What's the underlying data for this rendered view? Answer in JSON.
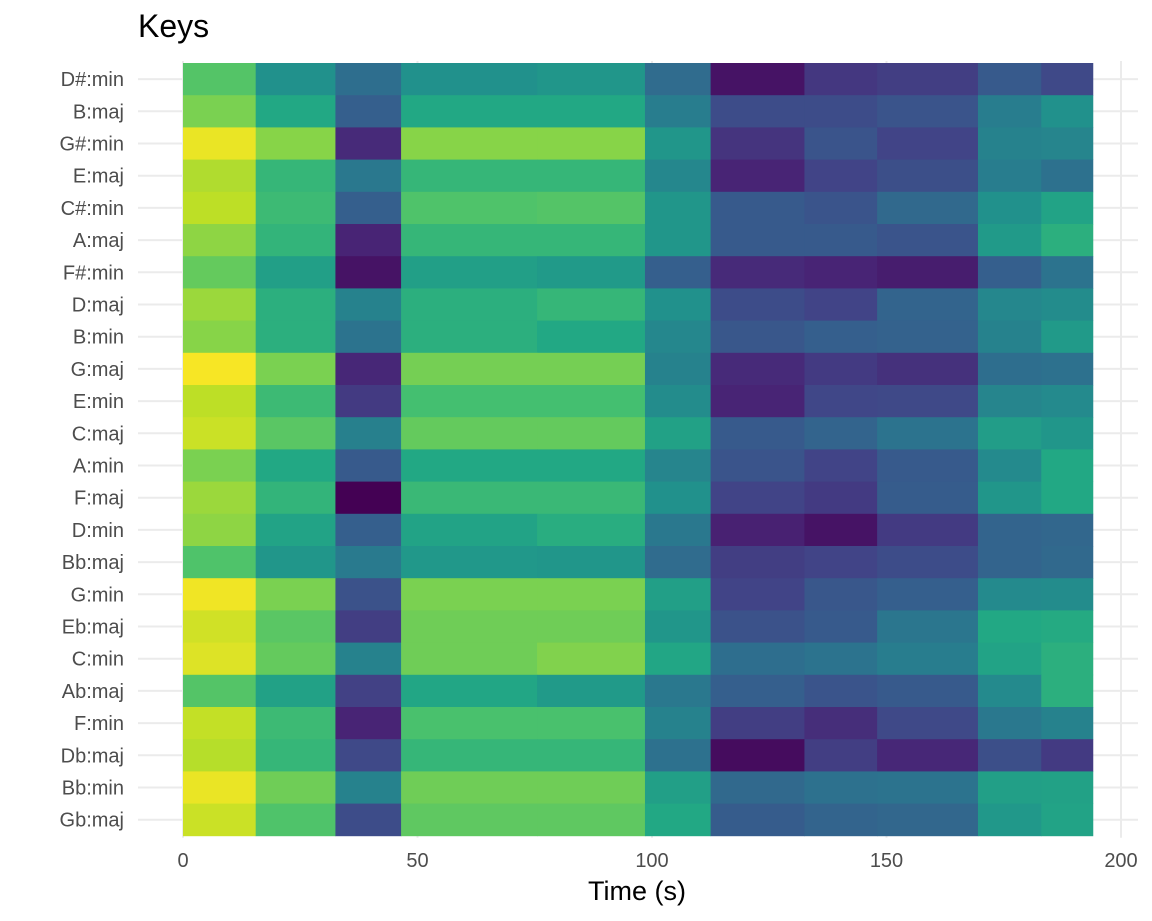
{
  "chart_data": {
    "type": "heatmap",
    "title": "Keys",
    "xlabel": "Time (s)",
    "ylabel": "",
    "xlim": [
      0,
      200
    ],
    "xticks": [
      0,
      50,
      100,
      150,
      200
    ],
    "grid": true,
    "legend": "none",
    "colormap": "viridis",
    "value_range": [
      0,
      1
    ],
    "time_bins": [
      [
        0,
        15.5
      ],
      [
        15.5,
        32.5
      ],
      [
        32.5,
        46.5
      ],
      [
        46.5,
        75.5
      ],
      [
        75.5,
        98.5
      ],
      [
        98.5,
        112.5
      ],
      [
        112.5,
        132.5
      ],
      [
        132.5,
        148
      ],
      [
        148,
        169.5
      ],
      [
        169.5,
        183
      ],
      [
        183,
        194
      ]
    ],
    "keys": [
      "D#:min",
      "B:maj",
      "G#:min",
      "E:maj",
      "C#:min",
      "A:maj",
      "F#:min",
      "D:maj",
      "B:min",
      "G:maj",
      "E:min",
      "C:maj",
      "A:min",
      "F:maj",
      "D:min",
      "Bb:maj",
      "G:min",
      "Eb:maj",
      "C:min",
      "Ab:maj",
      "F:min",
      "Db:maj",
      "Bb:min",
      "Gb:maj"
    ],
    "values": [
      [
        0.73,
        0.5,
        0.36,
        0.5,
        0.52,
        0.35,
        0.05,
        0.16,
        0.18,
        0.28,
        0.22
      ],
      [
        0.8,
        0.6,
        0.3,
        0.6,
        0.6,
        0.42,
        0.23,
        0.23,
        0.26,
        0.42,
        0.5
      ],
      [
        0.97,
        0.82,
        0.12,
        0.82,
        0.82,
        0.52,
        0.15,
        0.26,
        0.2,
        0.44,
        0.45
      ],
      [
        0.88,
        0.66,
        0.4,
        0.66,
        0.66,
        0.46,
        0.1,
        0.2,
        0.24,
        0.42,
        0.37
      ],
      [
        0.9,
        0.68,
        0.3,
        0.72,
        0.73,
        0.52,
        0.28,
        0.26,
        0.34,
        0.5,
        0.58
      ],
      [
        0.83,
        0.65,
        0.1,
        0.66,
        0.66,
        0.52,
        0.28,
        0.28,
        0.26,
        0.54,
        0.63
      ],
      [
        0.76,
        0.56,
        0.05,
        0.56,
        0.54,
        0.3,
        0.12,
        0.1,
        0.08,
        0.3,
        0.38
      ],
      [
        0.85,
        0.63,
        0.44,
        0.63,
        0.66,
        0.5,
        0.23,
        0.2,
        0.32,
        0.46,
        0.48
      ],
      [
        0.82,
        0.63,
        0.38,
        0.63,
        0.6,
        0.46,
        0.27,
        0.3,
        0.31,
        0.44,
        0.54
      ],
      [
        0.99,
        0.8,
        0.11,
        0.79,
        0.79,
        0.44,
        0.12,
        0.17,
        0.14,
        0.36,
        0.37
      ],
      [
        0.9,
        0.68,
        0.17,
        0.7,
        0.7,
        0.48,
        0.1,
        0.21,
        0.22,
        0.45,
        0.47
      ],
      [
        0.92,
        0.74,
        0.43,
        0.76,
        0.76,
        0.57,
        0.28,
        0.32,
        0.38,
        0.55,
        0.52
      ],
      [
        0.8,
        0.6,
        0.28,
        0.6,
        0.6,
        0.45,
        0.26,
        0.2,
        0.28,
        0.47,
        0.6
      ],
      [
        0.85,
        0.65,
        0.0,
        0.67,
        0.67,
        0.5,
        0.2,
        0.17,
        0.29,
        0.52,
        0.6
      ],
      [
        0.83,
        0.58,
        0.3,
        0.58,
        0.62,
        0.4,
        0.09,
        0.05,
        0.17,
        0.32,
        0.33
      ],
      [
        0.72,
        0.52,
        0.41,
        0.53,
        0.52,
        0.35,
        0.18,
        0.2,
        0.23,
        0.32,
        0.34
      ],
      [
        0.98,
        0.8,
        0.25,
        0.8,
        0.8,
        0.56,
        0.2,
        0.27,
        0.3,
        0.47,
        0.48
      ],
      [
        0.93,
        0.74,
        0.18,
        0.78,
        0.78,
        0.52,
        0.25,
        0.28,
        0.39,
        0.6,
        0.61
      ],
      [
        0.95,
        0.76,
        0.44,
        0.78,
        0.81,
        0.59,
        0.36,
        0.38,
        0.42,
        0.58,
        0.63
      ],
      [
        0.73,
        0.57,
        0.19,
        0.59,
        0.54,
        0.4,
        0.3,
        0.26,
        0.28,
        0.47,
        0.63
      ],
      [
        0.91,
        0.68,
        0.1,
        0.71,
        0.71,
        0.44,
        0.18,
        0.13,
        0.22,
        0.4,
        0.44
      ],
      [
        0.89,
        0.66,
        0.22,
        0.66,
        0.66,
        0.37,
        0.03,
        0.18,
        0.11,
        0.24,
        0.17
      ],
      [
        0.97,
        0.78,
        0.44,
        0.78,
        0.78,
        0.56,
        0.34,
        0.37,
        0.38,
        0.56,
        0.57
      ],
      [
        0.92,
        0.72,
        0.23,
        0.75,
        0.75,
        0.6,
        0.29,
        0.32,
        0.33,
        0.53,
        0.58
      ]
    ]
  }
}
